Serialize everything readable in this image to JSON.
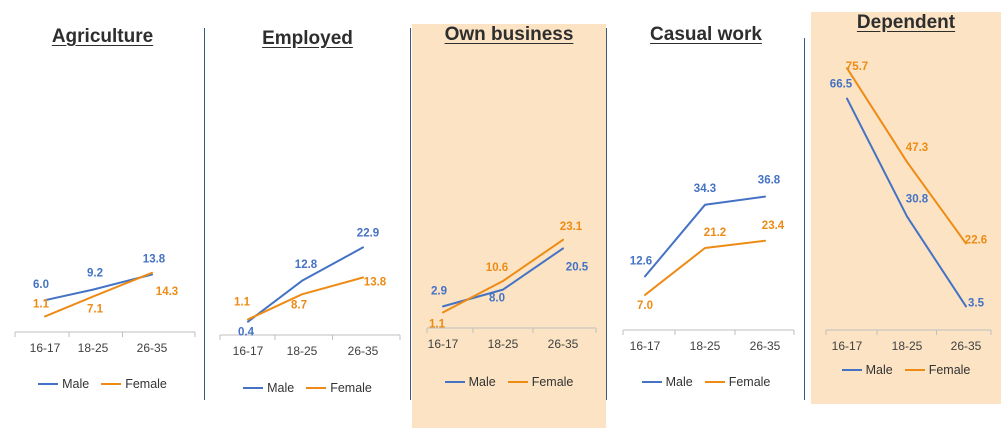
{
  "colors": {
    "male": "#4472c4",
    "female": "#ed8b15",
    "highlight": "#fbe3c4",
    "axis": "#bfbfbf",
    "label": "#404040"
  },
  "legend": {
    "male": "Male",
    "female": "Female"
  },
  "chart_data": [
    {
      "type": "line",
      "title": "Agriculture",
      "highlighted": false,
      "categories": [
        "16-17",
        "18-25",
        "26-35"
      ],
      "series": [
        {
          "name": "Male",
          "values": [
            6.0,
            9.2,
            13.8
          ]
        },
        {
          "name": "Female",
          "values": [
            1.1,
            7.1,
            14.3
          ]
        }
      ],
      "ylim": [
        0,
        80
      ]
    },
    {
      "type": "line",
      "title": "Employed",
      "highlighted": false,
      "categories": [
        "16-17",
        "18-25",
        "26-35"
      ],
      "series": [
        {
          "name": "Male",
          "values": [
            0.4,
            12.8,
            22.9
          ]
        },
        {
          "name": "Female",
          "values": [
            1.1,
            8.7,
            13.8
          ]
        }
      ],
      "ylim": [
        0,
        80
      ]
    },
    {
      "type": "line",
      "title": "Own business",
      "highlighted": true,
      "categories": [
        "16-17",
        "18-25",
        "26-35"
      ],
      "series": [
        {
          "name": "Male",
          "values": [
            2.9,
            8.0,
            20.5
          ]
        },
        {
          "name": "Female",
          "values": [
            1.1,
            10.6,
            23.1
          ]
        }
      ],
      "ylim": [
        0,
        80
      ]
    },
    {
      "type": "line",
      "title": "Casual work",
      "highlighted": false,
      "categories": [
        "16-17",
        "18-25",
        "26-35"
      ],
      "series": [
        {
          "name": "Male",
          "values": [
            12.6,
            34.3,
            36.8
          ]
        },
        {
          "name": "Female",
          "values": [
            7.0,
            21.2,
            23.4
          ]
        }
      ],
      "ylim": [
        0,
        80
      ]
    },
    {
      "type": "line",
      "title": "Dependent",
      "highlighted": true,
      "categories": [
        "16-17",
        "18-25",
        "26-35"
      ],
      "series": [
        {
          "name": "Male",
          "values": [
            66.5,
            30.8,
            3.5
          ]
        },
        {
          "name": "Female",
          "values": [
            75.7,
            47.3,
            22.6
          ]
        }
      ],
      "ylim": [
        0,
        80
      ]
    }
  ]
}
